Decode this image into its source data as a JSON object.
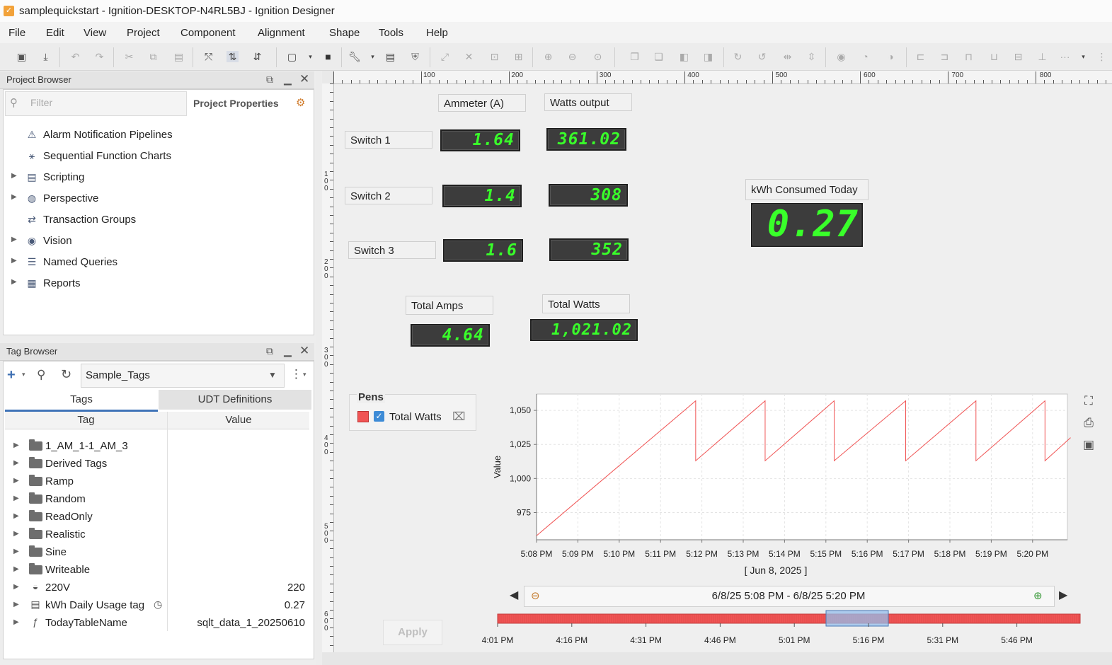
{
  "window": {
    "title": "samplequickstart - Ignition-DESKTOP-N4RL5BJ - Ignition Designer",
    "app_icon": "ignition-icon"
  },
  "menu": [
    "File",
    "Edit",
    "View",
    "Project",
    "Component",
    "Alignment",
    "Shape",
    "Tools",
    "Help"
  ],
  "project_browser": {
    "title": "Project Browser",
    "filter_placeholder": "Filter",
    "properties_label": "Project Properties",
    "items": [
      {
        "label": "Alarm Notification Pipelines",
        "icon": "alarm-pipeline-icon",
        "expandable": false
      },
      {
        "label": "Sequential Function Charts",
        "icon": "sfc-icon",
        "expandable": false
      },
      {
        "label": "Scripting",
        "icon": "scripting-icon",
        "expandable": true
      },
      {
        "label": "Perspective",
        "icon": "perspective-icon",
        "expandable": true
      },
      {
        "label": "Transaction Groups",
        "icon": "transaction-groups-icon",
        "expandable": false
      },
      {
        "label": "Vision",
        "icon": "vision-icon",
        "expandable": true
      },
      {
        "label": "Named Queries",
        "icon": "named-queries-icon",
        "expandable": true
      },
      {
        "label": "Reports",
        "icon": "reports-icon",
        "expandable": true
      }
    ]
  },
  "tag_browser": {
    "title": "Tag Browser",
    "provider": "Sample_Tags",
    "tabs": [
      "Tags",
      "UDT Definitions"
    ],
    "columns": [
      "Tag",
      "Value"
    ],
    "rows": [
      {
        "name": "1_AM_1-1_AM_3",
        "value": "",
        "type": "folder"
      },
      {
        "name": "Derived Tags",
        "value": "",
        "type": "folder"
      },
      {
        "name": "Ramp",
        "value": "",
        "type": "folder"
      },
      {
        "name": "Random",
        "value": "",
        "type": "folder"
      },
      {
        "name": "ReadOnly",
        "value": "",
        "type": "folder"
      },
      {
        "name": "Realistic",
        "value": "",
        "type": "folder"
      },
      {
        "name": "Sine",
        "value": "",
        "type": "folder"
      },
      {
        "name": "Writeable",
        "value": "",
        "type": "folder"
      },
      {
        "name": "220V",
        "value": "220",
        "type": "tag"
      },
      {
        "name": "kWh Daily Usage tag",
        "value": "0.27",
        "type": "tag"
      },
      {
        "name": "TodayTableName",
        "value": "sqlt_data_1_20250610",
        "type": "tag"
      }
    ]
  },
  "rulers": {
    "h": [
      "100",
      "200",
      "300",
      "400",
      "500",
      "600",
      "700",
      "800"
    ],
    "v": [
      "100",
      "200",
      "300",
      "400",
      "500",
      "600"
    ]
  },
  "screen": {
    "header_ammeter": "Ammeter (A)",
    "header_watts": "Watts output",
    "switches": [
      {
        "label": "Switch 1",
        "amps": "1.64",
        "watts": "361.02"
      },
      {
        "label": "Switch 2",
        "amps": "1.4",
        "watts": "308"
      },
      {
        "label": "Switch 3",
        "amps": "1.6",
        "watts": "352"
      }
    ],
    "kwh_label": "kWh Consumed Today",
    "kwh_value": "0.27",
    "total_amps_label": "Total Amps",
    "total_amps_value": "4.64",
    "total_watts_label": "Total Watts",
    "total_watts_value": "1,021.02",
    "pens_title": "Pens",
    "pen_name": "Total Watts",
    "range_text": "6/8/25 5:08 PM - 6/8/25 5:20 PM",
    "apply_label": "Apply",
    "colors": {
      "led": "#39ff2a",
      "pen": "#f05454"
    }
  },
  "chart_data": {
    "type": "line",
    "title": "",
    "xlabel": "[ Jun 8, 2025 ]",
    "ylabel": "Value",
    "ylim": [
      955,
      1062
    ],
    "yticks": [
      "975",
      "1,000",
      "1,025",
      "1,050"
    ],
    "xticks": [
      "5:08 PM",
      "5:09 PM",
      "5:10 PM",
      "5:11 PM",
      "5:12 PM",
      "5:13 PM",
      "5:14 PM",
      "5:15 PM",
      "5:16 PM",
      "5:17 PM",
      "5:18 PM",
      "5:19 PM",
      "5:20 PM"
    ],
    "grid": true,
    "series": [
      {
        "name": "Total Watts",
        "color": "#f05454",
        "x": [
          0,
          3.85,
          3.85,
          5.53,
          5.53,
          7.2,
          7.2,
          8.93,
          8.93,
          10.63,
          10.63,
          12.3,
          12.3,
          12.92
        ],
        "y": [
          958,
          1057,
          1013,
          1057,
          1013,
          1057,
          1013,
          1057,
          1013,
          1057,
          1013,
          1057,
          1013,
          1030
        ]
      }
    ],
    "overview_ticks": [
      "4:01 PM",
      "4:16 PM",
      "4:31 PM",
      "4:46 PM",
      "5:01 PM",
      "5:16 PM",
      "5:31 PM",
      "5:46 PM"
    ]
  }
}
